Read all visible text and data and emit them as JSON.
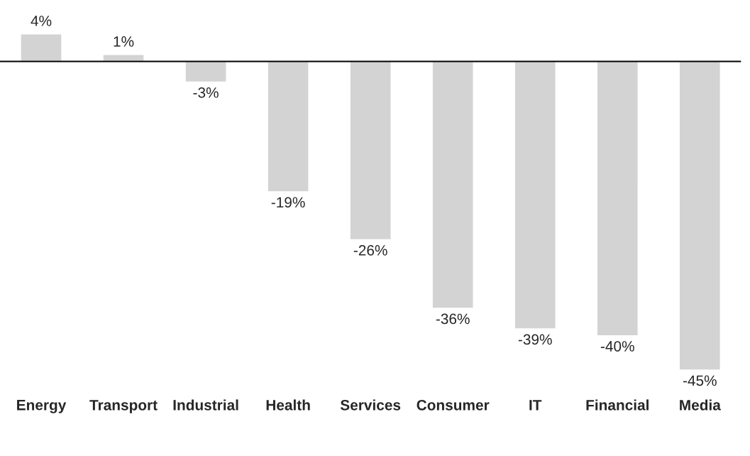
{
  "chart_data": {
    "type": "bar",
    "categories": [
      "Energy",
      "Transport",
      "Industrial",
      "Health",
      "Services",
      "Consumer",
      "IT",
      "Financial",
      "Media"
    ],
    "values": [
      4,
      1,
      -3,
      -19,
      -26,
      -36,
      -39,
      -40,
      -45
    ],
    "value_labels": [
      "4%",
      "1%",
      "-3%",
      "-19%",
      "-26%",
      "-36%",
      "-39%",
      "-40%",
      "-45%"
    ],
    "color": "#d3d3d3",
    "tick_labels": "x",
    "grid": false
  }
}
